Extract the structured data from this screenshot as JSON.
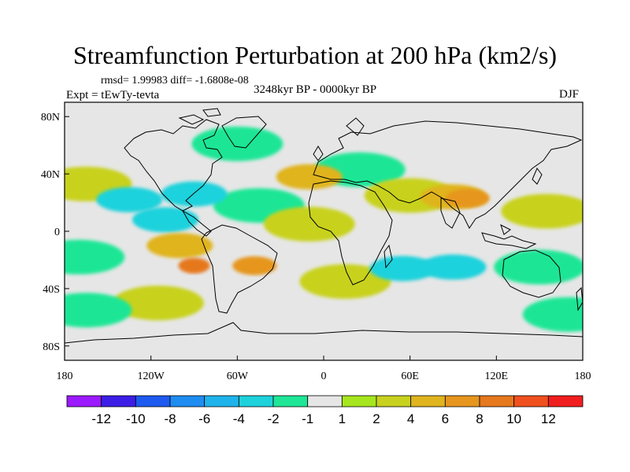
{
  "title": "Streamfunction Perturbation at 200 hPa (km2/s)",
  "stats": "rmsd= 1.99983 diff= -1.6808e-08",
  "experiment": "Expt = tEwTy-tevta",
  "period": "3248kyr BP - 0000kyr BP",
  "season": "DJF",
  "chart_data": {
    "type": "heatmap",
    "title": "Streamfunction Perturbation at 200 hPa (km2/s)",
    "xlabel": "",
    "ylabel": "",
    "xlim": [
      -180,
      180
    ],
    "ylim": [
      -90,
      90
    ],
    "x_ticks": [
      {
        "value": -180,
        "label": "180"
      },
      {
        "value": -120,
        "label": "120W"
      },
      {
        "value": -60,
        "label": "60W"
      },
      {
        "value": 0,
        "label": "0"
      },
      {
        "value": 60,
        "label": "60E"
      },
      {
        "value": 120,
        "label": "120E"
      },
      {
        "value": 180,
        "label": "180"
      }
    ],
    "y_ticks": [
      {
        "value": 80,
        "label": "80N"
      },
      {
        "value": 40,
        "label": "40N"
      },
      {
        "value": 0,
        "label": "0"
      },
      {
        "value": -40,
        "label": "40S"
      },
      {
        "value": -80,
        "label": "80S"
      }
    ],
    "colorbar": {
      "labels": [
        "-12",
        "-10",
        "-8",
        "-6",
        "-4",
        "-2",
        "-1",
        "1",
        "2",
        "4",
        "6",
        "8",
        "10",
        "12"
      ],
      "colors": [
        "#9c1aff",
        "#3c1ee6",
        "#1e5af0",
        "#1e8cf0",
        "#1eb4eb",
        "#1ed2dc",
        "#1ee696",
        "#e6e6e6",
        "#a6e61e",
        "#c8d21e",
        "#e0b41e",
        "#e6961e",
        "#e6781e",
        "#f0501e",
        "#f01e1e"
      ]
    },
    "anomaly_regions": [
      {
        "lon": 25,
        "lat": 43,
        "level": -2
      },
      {
        "lon": -60,
        "lat": 61,
        "level": -2
      },
      {
        "lon": -165,
        "lat": 33,
        "level": 2
      },
      {
        "lon": -10,
        "lat": 38,
        "level": 4
      },
      {
        "lon": -90,
        "lat": 26,
        "level": -4
      },
      {
        "lon": -135,
        "lat": 22,
        "level": -4
      },
      {
        "lon": -45,
        "lat": 18,
        "level": -2
      },
      {
        "lon": -110,
        "lat": 8,
        "level": -4
      },
      {
        "lon": -10,
        "lat": 5,
        "level": 2
      },
      {
        "lon": 90,
        "lat": 24,
        "level": 4
      },
      {
        "lon": 100,
        "lat": 23,
        "level": 6
      },
      {
        "lon": 155,
        "lat": 14,
        "level": 2
      },
      {
        "lon": 60,
        "lat": 25,
        "level": 2
      },
      {
        "lon": 55,
        "lat": -26,
        "level": -4
      },
      {
        "lon": 90,
        "lat": -25,
        "level": -4
      },
      {
        "lon": 150,
        "lat": -25,
        "level": -2
      },
      {
        "lon": -170,
        "lat": -18,
        "level": -2
      },
      {
        "lon": -100,
        "lat": -10,
        "level": 4
      },
      {
        "lon": -90,
        "lat": -24,
        "level": 8
      },
      {
        "lon": -48,
        "lat": -24,
        "level": 6
      },
      {
        "lon": -115,
        "lat": -50,
        "level": 2
      },
      {
        "lon": -165,
        "lat": -55,
        "level": -2
      },
      {
        "lon": 15,
        "lat": -35,
        "level": 2
      },
      {
        "lon": 170,
        "lat": -58,
        "level": -2
      }
    ]
  }
}
